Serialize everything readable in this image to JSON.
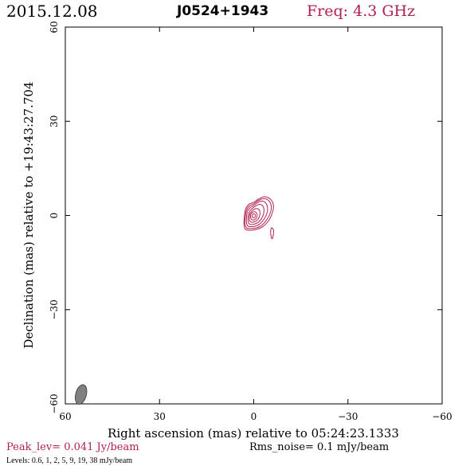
{
  "header": {
    "date": "2015.12.08",
    "source": "J0524+1943",
    "freq": "Freq: 4.3 GHz"
  },
  "footer": {
    "peak": "Peak_lev=  0.041 Jy/beam",
    "rms": "Rms_noise=   0.1 mJy/beam",
    "levels": "Levels: 0.6,    1,    2,    5,    9,   19,   38 mJy/beam"
  },
  "chart_data": {
    "type": "contour",
    "xlabel": "Right ascension (mas) relative to 05:24:23.1333",
    "ylabel": "Declination (mas) relative to +19:43:27.704",
    "xlim": [
      60,
      -60
    ],
    "ylim": [
      -60,
      60
    ],
    "x_ticks": [
      60,
      30,
      0,
      -30,
      -60
    ],
    "y_ticks": [
      -60,
      -30,
      0,
      30,
      60
    ],
    "x_tick_labels": [
      "60",
      "30",
      "0",
      "−30",
      "−60"
    ],
    "y_tick_labels": [
      "−60",
      "−30",
      "0",
      "30",
      "60"
    ],
    "levels_mjy": [
      0.6,
      1,
      2,
      5,
      9,
      19,
      38
    ],
    "peak_jy_per_beam": 0.041,
    "rms_mjy_per_beam": 0.1,
    "contour_color": "#b0204f",
    "beam": {
      "x": 55,
      "y": -57,
      "major": 3.2,
      "minor": 1.7,
      "pa_deg": 15,
      "color": "#808080"
    },
    "contours": [
      {
        "level": 0.6,
        "points": [
          [
            2.5,
            -4.5
          ],
          [
            0,
            -4.6
          ],
          [
            -2.5,
            -3.8
          ],
          [
            -4.5,
            -2
          ],
          [
            -5.8,
            0.5
          ],
          [
            -6.3,
            3
          ],
          [
            -5.5,
            5
          ],
          [
            -3.5,
            6
          ],
          [
            -1.5,
            5.2
          ],
          [
            0,
            4.2
          ],
          [
            1.5,
            3.6
          ],
          [
            2.6,
            2
          ],
          [
            3,
            -0.5
          ],
          [
            3.1,
            -2.8
          ]
        ]
      },
      {
        "level": 0.6,
        "points": [
          [
            -5.6,
            -4
          ],
          [
            -5.4,
            -5.8
          ],
          [
            -5.8,
            -7.4
          ],
          [
            -6.2,
            -6.4
          ],
          [
            -6.3,
            -4.6
          ]
        ]
      },
      {
        "level": 1,
        "points": [
          [
            2.2,
            -4
          ],
          [
            0,
            -4.1
          ],
          [
            -2.2,
            -3.4
          ],
          [
            -3.9,
            -1.7
          ],
          [
            -5.2,
            0.6
          ],
          [
            -5.6,
            2.8
          ],
          [
            -4.9,
            4.6
          ],
          [
            -3.2,
            5.4
          ],
          [
            -1.4,
            4.7
          ],
          [
            0,
            3.7
          ],
          [
            1.3,
            3.1
          ],
          [
            2.3,
            1.7
          ],
          [
            2.7,
            -0.5
          ],
          [
            2.8,
            -2.5
          ]
        ]
      },
      {
        "level": 2,
        "points": [
          [
            1.8,
            -3.4
          ],
          [
            0,
            -3.5
          ],
          [
            -1.8,
            -2.8
          ],
          [
            -3.2,
            -1.3
          ],
          [
            -4.2,
            0.7
          ],
          [
            -4.4,
            2.5
          ],
          [
            -3.8,
            4
          ],
          [
            -2.5,
            4.6
          ],
          [
            -1.1,
            4
          ],
          [
            0.1,
            3.1
          ],
          [
            1.1,
            2.5
          ],
          [
            2,
            1.3
          ],
          [
            2.3,
            -0.6
          ],
          [
            2.3,
            -2.3
          ]
        ]
      },
      {
        "level": 5,
        "points": [
          [
            1.4,
            -2.7
          ],
          [
            0,
            -2.8
          ],
          [
            -1.4,
            -2.2
          ],
          [
            -2.5,
            -1
          ],
          [
            -3.2,
            0.8
          ],
          [
            -3.2,
            2.3
          ],
          [
            -2.6,
            3.3
          ],
          [
            -1.6,
            3.5
          ],
          [
            -0.6,
            3
          ],
          [
            0.4,
            2.3
          ],
          [
            1.2,
            1.5
          ],
          [
            1.7,
            0.2
          ],
          [
            1.8,
            -1.6
          ]
        ]
      },
      {
        "level": 9,
        "points": [
          [
            1,
            -2
          ],
          [
            0,
            -2.1
          ],
          [
            -1,
            -1.6
          ],
          [
            -1.7,
            -0.6
          ],
          [
            -2,
            0.6
          ],
          [
            -1.8,
            1.7
          ],
          [
            -1.1,
            2.2
          ],
          [
            -0.2,
            2
          ],
          [
            0.6,
            1.4
          ],
          [
            1.2,
            0.5
          ],
          [
            1.4,
            -1
          ]
        ]
      },
      {
        "level": 19,
        "points": [
          [
            0.6,
            -1.3
          ],
          [
            -0.1,
            -1.4
          ],
          [
            -0.8,
            -0.9
          ],
          [
            -1.1,
            0
          ],
          [
            -0.9,
            0.8
          ],
          [
            -0.3,
            1.2
          ],
          [
            0.4,
            1
          ],
          [
            0.9,
            0.3
          ],
          [
            1,
            -0.6
          ]
        ]
      },
      {
        "level": 38,
        "points": [
          [
            0.3,
            -0.6
          ],
          [
            -0.2,
            -0.7
          ],
          [
            -0.5,
            -0.3
          ],
          [
            -0.5,
            0.2
          ],
          [
            -0.2,
            0.5
          ],
          [
            0.2,
            0.4
          ],
          [
            0.4,
            0
          ],
          [
            0.5,
            -0.4
          ]
        ]
      }
    ]
  }
}
